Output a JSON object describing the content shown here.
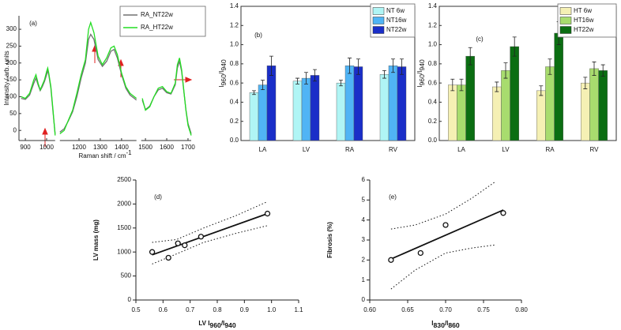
{
  "chart_data": [
    {
      "type": "line",
      "panel_label": "(a)",
      "y_label": "Intensity / arb. units",
      "x_label": {
        "text": "Raman shift  /  cm",
        "sup": "-1"
      },
      "x_segments": [
        [
          870,
          1040
        ],
        [
          1110,
          1470
        ],
        [
          1480,
          1715
        ]
      ],
      "xticks": [
        900,
        1000,
        1200,
        1300,
        1400,
        1500,
        1600,
        1700
      ],
      "ylim": [
        -30,
        340
      ],
      "yticks": [
        0,
        50,
        100,
        150,
        200,
        250,
        300
      ],
      "legend": "upper right",
      "x": [
        880,
        900,
        920,
        940,
        950,
        960,
        970,
        980,
        990,
        1000,
        1005,
        1010,
        1020,
        1030,
        1040,
        null,
        1110,
        1130,
        1150,
        1170,
        1190,
        1210,
        1230,
        1245,
        1255,
        1270,
        1290,
        1310,
        1330,
        1350,
        1365,
        1380,
        1400,
        1420,
        1440,
        1460,
        1470,
        null,
        1485,
        1500,
        1520,
        1540,
        1560,
        1580,
        1600,
        1620,
        1640,
        1650,
        1660,
        1670,
        1680,
        1690,
        1700,
        1715
      ],
      "series": [
        {
          "name": "RA_NT22w",
          "color": "#707070",
          "values": [
            95,
            92,
            105,
            140,
            155,
            135,
            118,
            130,
            145,
            165,
            178,
            165,
            125,
            55,
            -10,
            null,
            -5,
            5,
            28,
            55,
            100,
            155,
            200,
            270,
            285,
            270,
            210,
            190,
            205,
            235,
            240,
            215,
            165,
            125,
            105,
            95,
            90,
            null,
            90,
            62,
            72,
            100,
            120,
            125,
            112,
            108,
            135,
            185,
            205,
            175,
            118,
            62,
            20,
            -10
          ]
        },
        {
          "name": "RA_HT22w",
          "color": "#22dd22",
          "values": [
            100,
            95,
            110,
            150,
            165,
            140,
            120,
            135,
            150,
            175,
            185,
            170,
            130,
            60,
            -15,
            null,
            -10,
            0,
            30,
            60,
            110,
            165,
            210,
            300,
            320,
            290,
            220,
            195,
            215,
            245,
            250,
            225,
            170,
            130,
            110,
            100,
            95,
            null,
            95,
            60,
            70,
            100,
            125,
            130,
            115,
            110,
            140,
            195,
            215,
            180,
            120,
            60,
            15,
            -15
          ]
        }
      ]
    },
    {
      "type": "bar",
      "panel_label": "(b)",
      "y_label": [
        {
          "text": "I",
          "sub": "960"
        },
        {
          "text": "/I",
          "sub": "940"
        }
      ],
      "categories": [
        "LA",
        "LV",
        "RA",
        "RV"
      ],
      "ylim": [
        0,
        1.4
      ],
      "yticks": [
        {
          "value": 0,
          "label": "0.0"
        },
        0.2,
        0.4,
        0.6,
        0.8,
        {
          "value": 1,
          "label": "1.0"
        },
        1.2,
        1.4
      ],
      "legend": "upper right",
      "series": [
        {
          "name": "NT 6w",
          "color": "#b0f5f5",
          "values": [
            0.5,
            0.62,
            0.6,
            0.69
          ],
          "errors": [
            0.02,
            0.03,
            0.03,
            0.04
          ]
        },
        {
          "name": "NT16w",
          "color": "#50b4f5",
          "values": [
            0.58,
            0.65,
            0.78,
            0.78
          ],
          "errors": [
            0.05,
            0.06,
            0.08,
            0.07
          ]
        },
        {
          "name": "NT22w",
          "color": "#1a2ec8",
          "values": [
            0.78,
            0.68,
            0.77,
            0.77
          ],
          "errors": [
            0.1,
            0.06,
            0.08,
            0.08
          ]
        }
      ]
    },
    {
      "type": "bar",
      "panel_label": "(c)",
      "y_label": [
        {
          "text": "I",
          "sub": "960"
        },
        {
          "text": "/I",
          "sub": "940"
        }
      ],
      "categories": [
        "LA",
        "LV",
        "RA",
        "RV"
      ],
      "ylim": [
        0,
        1.4
      ],
      "yticks": [
        {
          "value": 0,
          "label": "0.0"
        },
        0.2,
        0.4,
        0.6,
        0.8,
        {
          "value": 1,
          "label": "1.0"
        },
        1.2,
        1.4
      ],
      "legend": "upper right",
      "series": [
        {
          "name": "HT 6w",
          "color": "#f5f0b4",
          "values": [
            0.58,
            0.56,
            0.52,
            0.6
          ],
          "errors": [
            0.06,
            0.05,
            0.05,
            0.06
          ]
        },
        {
          "name": "HT16w",
          "color": "#a8dc6e",
          "values": [
            0.58,
            0.73,
            0.77,
            0.75
          ],
          "errors": [
            0.06,
            0.08,
            0.08,
            0.07
          ]
        },
        {
          "name": "HT22w",
          "color": "#0b6e12",
          "values": [
            0.88,
            0.98,
            1.12,
            0.73
          ],
          "errors": [
            0.09,
            0.1,
            0.12,
            0.06
          ]
        }
      ]
    },
    {
      "type": "scatter",
      "panel_label": "(d)",
      "y_label": "LV mass (mg)",
      "x_label": [
        {
          "text": "LV I",
          "sub": "960"
        },
        {
          "text": "/I",
          "sub": "940"
        }
      ],
      "xlim": [
        0.5,
        1.1
      ],
      "xticks": [
        0.5,
        0.6,
        0.7,
        0.8,
        0.9,
        {
          "value": 1,
          "label": "1.0"
        },
        1.1
      ],
      "ylim": [
        0,
        2500
      ],
      "yticks": [
        0,
        500,
        1000,
        1500,
        2000,
        2500
      ],
      "x": [
        0.56,
        0.62,
        0.655,
        0.68,
        0.74,
        0.985
      ],
      "values": [
        1000,
        880,
        1180,
        1140,
        1320,
        1800
      ],
      "fit": {
        "x": [
          0.56,
          0.985
        ],
        "values": [
          940,
          1800
        ]
      },
      "confidence_upper": {
        "x": [
          0.56,
          0.65,
          0.75,
          0.87,
          0.985
        ],
        "values": [
          1200,
          1260,
          1500,
          1760,
          2050
        ]
      },
      "confidence_lower": {
        "x": [
          0.56,
          0.65,
          0.75,
          0.87,
          0.985
        ],
        "values": [
          750,
          960,
          1200,
          1390,
          1550
        ]
      }
    },
    {
      "type": "scatter",
      "panel_label": "(e)",
      "y_label": "Fibrosis (%)",
      "x_label": [
        {
          "text": "I",
          "sub": "830"
        },
        {
          "text": "/I",
          "sub": "860"
        }
      ],
      "xlim": [
        0.6,
        0.8
      ],
      "xticks": [
        {
          "value": 0.6,
          "label": "0.60"
        },
        0.65,
        {
          "value": 0.7,
          "label": "0.70"
        },
        0.75,
        {
          "value": 0.8,
          "label": "0.80"
        }
      ],
      "ylim": [
        0,
        6
      ],
      "yticks": [
        0,
        1,
        2,
        3,
        4,
        5,
        6
      ],
      "x": [
        0.628,
        0.667,
        0.7,
        0.776
      ],
      "values": [
        2.0,
        2.35,
        3.75,
        4.35
      ],
      "fit": {
        "x": [
          0.628,
          0.776
        ],
        "values": [
          2.05,
          4.5
        ]
      },
      "confidence_upper": {
        "x": [
          0.628,
          0.66,
          0.7,
          0.735,
          0.765
        ],
        "values": [
          3.55,
          3.75,
          4.3,
          5.1,
          5.9
        ]
      },
      "confidence_lower": {
        "x": [
          0.628,
          0.66,
          0.7,
          0.735,
          0.765
        ],
        "values": [
          0.55,
          1.5,
          2.35,
          2.6,
          2.75
        ]
      }
    }
  ]
}
